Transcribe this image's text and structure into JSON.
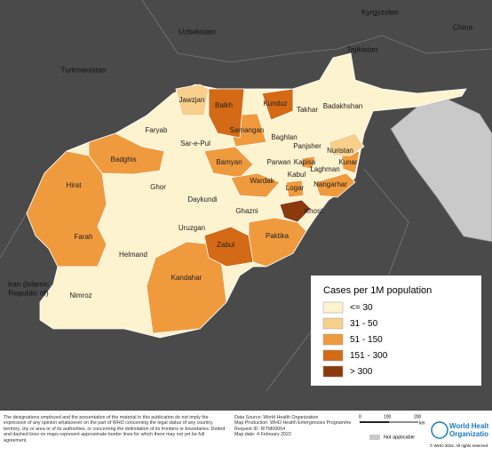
{
  "countries": [
    "Uzbekistan",
    "Kyrgyzstan",
    "Tajikistan",
    "China",
    "Turkmenistan",
    "Iran (Islamic",
    "Republic of)"
  ],
  "provinces": [
    "Jawzjan",
    "Balkh",
    "Kunduz",
    "Takhar",
    "Badakhshan",
    "Faryab",
    "Samangan",
    "Baghlan",
    "Sar-e-Pul",
    "Panjsher",
    "Nuristan",
    "Badghis",
    "Bamyan",
    "Parwan",
    "Kapisa",
    "Kunar",
    "Laghman",
    "Kabul",
    "Hirat",
    "Ghor",
    "Wardak",
    "Nangarhar",
    "Logar",
    "Daykundi",
    "Ghazni",
    "Khost",
    "Farah",
    "Uruzgan",
    "Paktika",
    "Zabul",
    "Helmand",
    "Nimroz",
    "Kandahar"
  ],
  "legend": {
    "title": "Cases per 1M population",
    "items": [
      {
        "label": "<= 30",
        "color": "#fdf3cf"
      },
      {
        "label": "31 - 50",
        "color": "#f8d08c"
      },
      {
        "label": "51 - 150",
        "color": "#f09a3e"
      },
      {
        "label": "151 - 300",
        "color": "#d46a16"
      },
      {
        "label": "> 300",
        "color": "#8b3a0e"
      }
    ]
  },
  "footer": {
    "disclaimer": "The designations employed and the presentation of the material in this publication do not imply the expression of any opinion whatsoever on the part of WHO concerning the legal status of any country, territory, city or area or of its authorities, or concerning the delimitation of its frontiers or boundaries. Dotted and dashed lines on maps represent approximate border lines for which there may not yet be full agreement.",
    "source": [
      "Data Source: World Health Organization",
      "Map Production: WHO Health Emergencies Programme",
      "Request ID: RITM00064",
      "Map date: 4 February 2022"
    ],
    "scale": [
      "0",
      "100",
      "200",
      "km"
    ],
    "not_applicable": "Not applicable",
    "logo": [
      "World Health",
      "Organization"
    ],
    "copyright": "© WHO 2022. All rights reserved"
  }
}
